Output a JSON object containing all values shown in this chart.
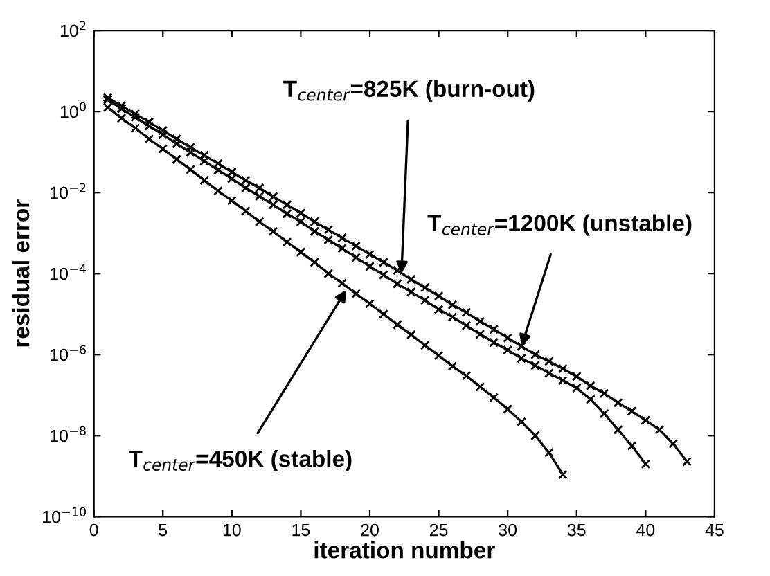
{
  "chart_data": {
    "type": "line",
    "xlabel": "iteration number",
    "ylabel": "residual error",
    "log": "y",
    "xlim": [
      0,
      45
    ],
    "xticks": [
      0,
      5,
      10,
      15,
      20,
      25,
      30,
      35,
      40,
      45
    ],
    "ylim": [
      1e-10,
      100
    ],
    "yticks": [
      {
        "value": 1e-10,
        "label": "10$^{−10}$"
      },
      {
        "value": 1e-08,
        "label": "10$^{−8}$"
      },
      {
        "value": 1e-06,
        "label": "10$^{−6}$"
      },
      {
        "value": 0.0001,
        "label": "10$^{−4}$"
      },
      {
        "value": 0.01,
        "label": "10$^{−2}$"
      },
      {
        "value": 1,
        "label": "10$^{0}$"
      },
      {
        "value": 100,
        "label": "10$^{2}$"
      }
    ],
    "grid": false,
    "legend": false,
    "marker": "cross",
    "line_style": "solid",
    "series": [
      {
        "color": "#000000",
        "x": [
          1,
          2,
          3,
          4,
          5,
          6,
          7,
          8,
          9,
          10,
          11,
          12,
          13,
          14,
          15,
          16,
          17,
          18,
          19,
          20,
          21,
          22,
          23,
          24,
          25,
          26,
          27,
          28,
          29,
          30,
          31,
          32,
          33,
          34
        ],
        "values": [
          1.26,
          0.69,
          0.39,
          0.21,
          0.12,
          0.066,
          0.037,
          0.02,
          0.011,
          0.0063,
          0.0035,
          0.0019,
          0.0011,
          0.0006,
          0.00034,
          0.00019,
          0.0001,
          5.8e-05,
          3.2e-05,
          1.8e-05,
          1e-05,
          5.5e-06,
          3.1e-06,
          1.7e-06,
          9.5e-07,
          5.2e-07,
          3e-07,
          1.6e-07,
          8.7e-08,
          4.5e-08,
          2.2e-08,
          1e-08,
          3.8e-09,
          1.1e-09
        ]
      },
      {
        "color": "#000000",
        "x": [
          1,
          2,
          3,
          4,
          5,
          6,
          7,
          8,
          9,
          10,
          11,
          12,
          13,
          14,
          15,
          16,
          17,
          18,
          19,
          20,
          21,
          22,
          23,
          24,
          25,
          26,
          27,
          28,
          29,
          30,
          31,
          32,
          33,
          34,
          35,
          36,
          37,
          38,
          39,
          40
        ],
        "values": [
          1.95,
          1.17,
          0.72,
          0.44,
          0.27,
          0.16,
          0.098,
          0.06,
          0.036,
          0.022,
          0.013,
          0.0081,
          0.005,
          0.003,
          0.0019,
          0.0011,
          0.00068,
          0.00042,
          0.00025,
          0.00015,
          9.3e-05,
          5.6e-05,
          3.5e-05,
          2.2e-05,
          1.3e-05,
          8.5e-06,
          5.2e-06,
          3.2e-06,
          2e-06,
          1.3e-06,
          8.1e-07,
          5.4e-07,
          3.5e-07,
          2.3e-07,
          1.5e-07,
          7.9e-08,
          3.5e-08,
          1.4e-08,
          5.6e-09,
          2e-09
        ]
      },
      {
        "color": "#000000",
        "x": [
          1,
          2,
          3,
          4,
          5,
          6,
          7,
          8,
          9,
          10,
          11,
          12,
          13,
          14,
          15,
          16,
          17,
          18,
          19,
          20,
          21,
          22,
          23,
          24,
          25,
          26,
          27,
          28,
          29,
          30,
          31,
          32,
          33,
          34,
          35,
          36,
          37,
          38,
          39,
          40,
          41,
          42,
          43
        ],
        "values": [
          2.2,
          1.4,
          0.87,
          0.55,
          0.34,
          0.21,
          0.13,
          0.083,
          0.052,
          0.032,
          0.02,
          0.013,
          0.0079,
          0.005,
          0.0031,
          0.0019,
          0.0012,
          0.00076,
          0.00048,
          0.0003,
          0.00019,
          0.00012,
          7.2e-05,
          4.5e-05,
          2.8e-05,
          1.7e-05,
          1.1e-05,
          6.6e-06,
          4.2e-06,
          2.6e-06,
          1.6e-06,
          1e-06,
          6.8e-07,
          4.5e-07,
          2.9e-07,
          1.7e-07,
          1.1e-07,
          6.5e-08,
          4e-08,
          2.4e-08,
          1.4e-08,
          6.3e-09,
          2.3e-09
        ]
      }
    ],
    "annotations": [
      {
        "text": "T$_{center}$=825K (burn-out)",
        "x": 22.3,
        "y": 0.0001
      },
      {
        "text": "T$_{center}$=1200K (unstable)",
        "x": 31,
        "y": 1.6e-06
      },
      {
        "text": "T$_{center}$=450K (stable)",
        "x": 18.3,
        "y": 4e-05
      }
    ]
  }
}
